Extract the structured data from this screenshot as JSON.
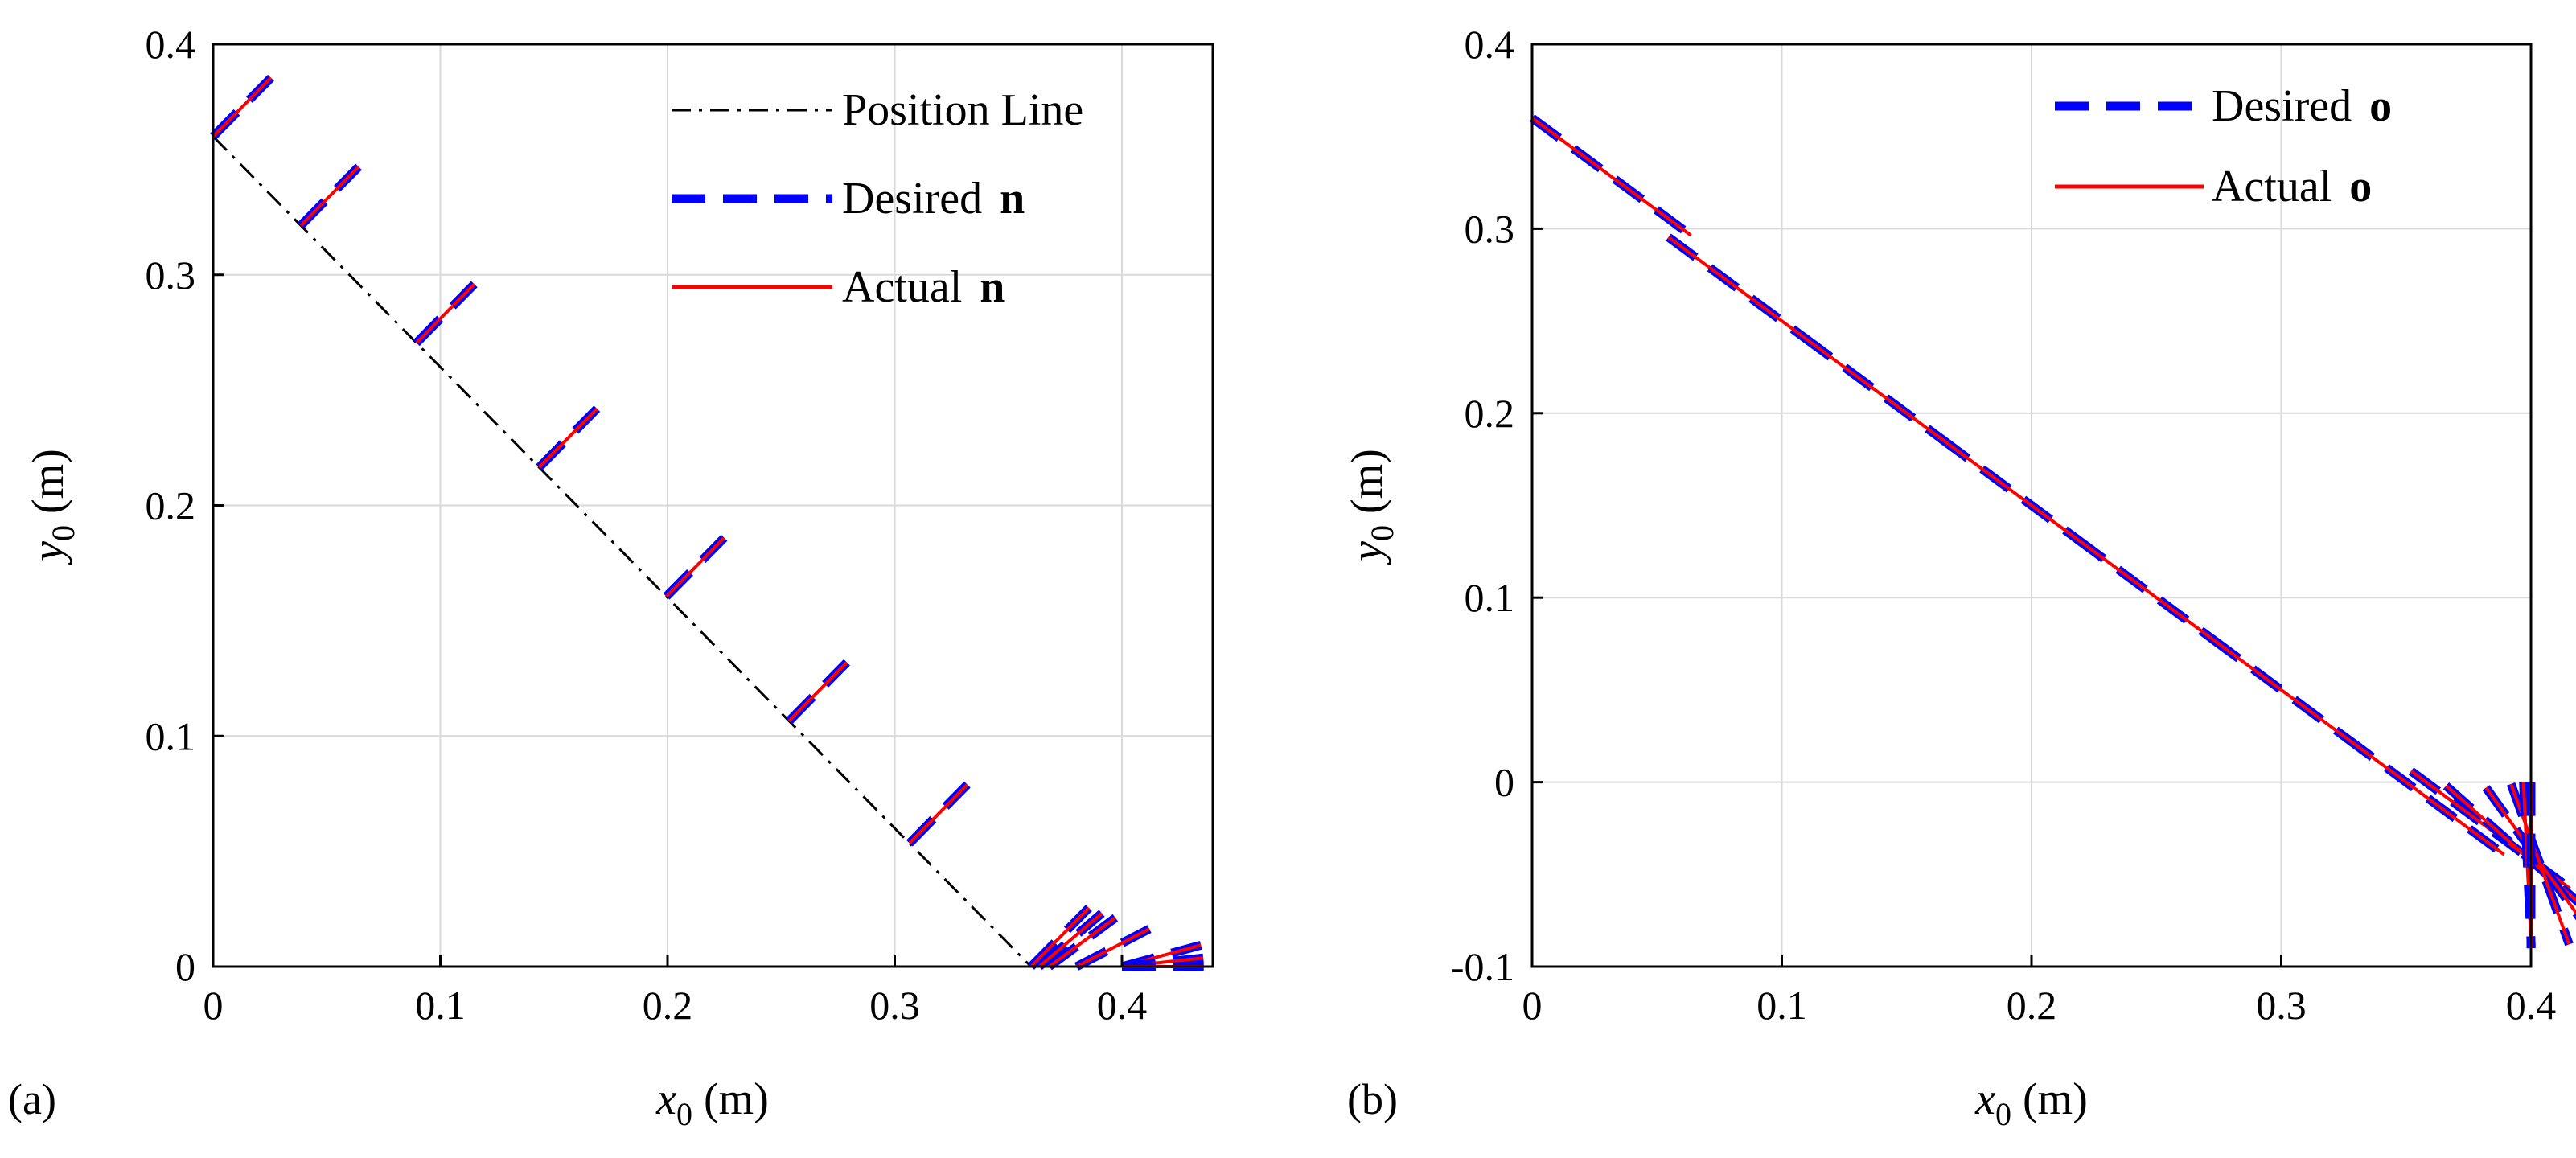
{
  "chart_data": [
    {
      "type": "line",
      "panel_label": "(a)",
      "xlabel": {
        "var": "x",
        "sub": "0",
        "unit": "(m)"
      },
      "ylabel": {
        "var": "y",
        "sub": "0",
        "unit": "(m)"
      },
      "xlim": [
        0,
        0.44
      ],
      "ylim": [
        0,
        0.4
      ],
      "xticks": [
        0,
        0.1,
        0.2,
        0.3,
        0.4
      ],
      "yticks": [
        0,
        0.1,
        0.2,
        0.3,
        0.4
      ],
      "xtick_labels": [
        "0",
        "0.1",
        "0.2",
        "0.3",
        "0.4"
      ],
      "ytick_labels": [
        "0",
        "0.1",
        "0.2",
        "0.3",
        "0.4"
      ],
      "grid": true,
      "legend": {
        "position": "top-right",
        "entries": [
          {
            "text": "Position Line",
            "bold": "",
            "style": "dashdot",
            "color": "#000000"
          },
          {
            "text": "Desired ",
            "bold": "n",
            "style": "dashed",
            "color": "#0000ff"
          },
          {
            "text": "Actual ",
            "bold": "n",
            "style": "solid",
            "color": "#ff0000"
          }
        ]
      },
      "position_line": {
        "x": [
          0,
          0.36
        ],
        "y": [
          0.36,
          0
        ]
      },
      "vector_length": 0.036,
      "vectors": [
        {
          "x": 0.0,
          "y": 0.36,
          "angle_deg": 45
        },
        {
          "x": 0.0386,
          "y": 0.3214,
          "angle_deg": 45
        },
        {
          "x": 0.0895,
          "y": 0.2705,
          "angle_deg": 45
        },
        {
          "x": 0.1435,
          "y": 0.2165,
          "angle_deg": 45
        },
        {
          "x": 0.1995,
          "y": 0.1605,
          "angle_deg": 45
        },
        {
          "x": 0.2535,
          "y": 0.1065,
          "angle_deg": 45
        },
        {
          "x": 0.3065,
          "y": 0.0535,
          "angle_deg": 45
        },
        {
          "x": 0.36,
          "y": 0.0,
          "angle_deg": 45
        },
        {
          "x": 0.3636,
          "y": 0.0,
          "angle_deg": 40
        },
        {
          "x": 0.368,
          "y": 0.0,
          "angle_deg": 36
        },
        {
          "x": 0.38,
          "y": 0.0,
          "angle_deg": 27
        },
        {
          "x": 0.4,
          "y": 0.0,
          "angle_deg": 15
        },
        {
          "x": 0.4,
          "y": 0.0,
          "angle_deg": 6
        },
        {
          "x": 0.4,
          "y": 0.0,
          "angle_deg": 0
        }
      ]
    },
    {
      "type": "line",
      "panel_label": "(b)",
      "xlabel": {
        "var": "x",
        "sub": "0",
        "unit": "(m)"
      },
      "ylabel": {
        "var": "y",
        "sub": "0",
        "unit": "(m)"
      },
      "xlim": [
        0,
        0.4
      ],
      "ylim": [
        -0.1,
        0.4
      ],
      "xticks": [
        0,
        0.1,
        0.2,
        0.3,
        0.4
      ],
      "yticks": [
        -0.1,
        0,
        0.1,
        0.2,
        0.3,
        0.4
      ],
      "xtick_labels": [
        "0",
        "0.1",
        "0.2",
        "0.3",
        "0.4"
      ],
      "ytick_labels": [
        "-0.1",
        "0",
        "0.1",
        "0.2",
        "0.3",
        "0.4"
      ],
      "grid": true,
      "legend": {
        "position": "top-right",
        "entries": [
          {
            "text": "Desired ",
            "bold": "o",
            "style": "dashed",
            "color": "#0000ff"
          },
          {
            "text": "Actual ",
            "bold": "o",
            "style": "solid",
            "color": "#ff0000"
          }
        ]
      },
      "vector_length": 0.09,
      "vectors": [
        {
          "x": 0.0,
          "y": 0.36,
          "angle_deg": -45
        },
        {
          "x": 0.0546,
          "y": 0.2954,
          "angle_deg": -45
        },
        {
          "x": 0.1086,
          "y": 0.2414,
          "angle_deg": -45
        },
        {
          "x": 0.1636,
          "y": 0.1864,
          "angle_deg": -45
        },
        {
          "x": 0.2181,
          "y": 0.1319,
          "angle_deg": -45
        },
        {
          "x": 0.2721,
          "y": 0.0779,
          "angle_deg": -45
        },
        {
          "x": 0.3256,
          "y": 0.0244,
          "angle_deg": -45
        },
        {
          "x": 0.352,
          "y": 0.006,
          "angle_deg": -45
        },
        {
          "x": 0.366,
          "y": -0.002,
          "angle_deg": -50
        },
        {
          "x": 0.382,
          "y": -0.003,
          "angle_deg": -62
        },
        {
          "x": 0.392,
          "y": -0.001,
          "angle_deg": -75
        },
        {
          "x": 0.397,
          "y": 0.0,
          "angle_deg": -88
        },
        {
          "x": 0.4,
          "y": 0.0,
          "angle_deg": -90
        }
      ]
    }
  ]
}
